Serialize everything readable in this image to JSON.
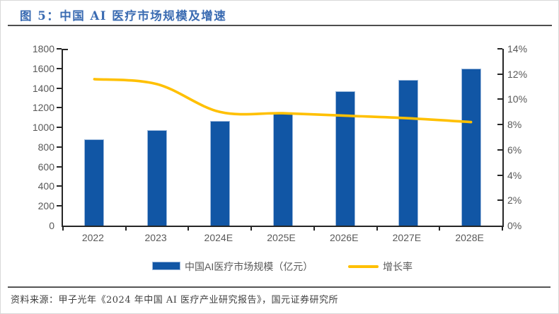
{
  "header": {
    "title": "图 5：中国 AI 医疗市场规模及增速"
  },
  "footer": {
    "source": "资料来源：甲子光年《2024 年中国 AI 医疗产业研究报告》，国元证券研究所"
  },
  "colors": {
    "bar_blue": "#1156a5",
    "bar_border": "#9db9dc",
    "line_gold": "#ffc000",
    "title_blue": "#3a6bb2",
    "axis_text_gray": "#595959",
    "axis_line": "#262626",
    "rule_gray": "#4e4e4e"
  },
  "chart_data": {
    "type": "bar",
    "combo": "bar+line",
    "categories": [
      "2022",
      "2023",
      "2024E",
      "2025E",
      "2026E",
      "2027E",
      "2028E"
    ],
    "series": [
      {
        "name": "中国AI医疗市场规模（亿元）",
        "type": "bar",
        "axis": "left",
        "color": "#1156a5",
        "values": [
          880,
          975,
          1065,
          1150,
          1365,
          1480,
          1600
        ]
      },
      {
        "name": "增长率",
        "type": "line",
        "axis": "right",
        "color": "#ffc000",
        "values_pct": [
          11.6,
          11.2,
          9.0,
          8.9,
          8.7,
          8.5,
          8.2
        ]
      }
    ],
    "left_axis": {
      "min": 0,
      "max": 1800,
      "step": 200
    },
    "right_axis": {
      "min": 0,
      "max": 14,
      "step": 2,
      "suffix": "%"
    },
    "grid": "off",
    "line_smoothing": "on",
    "legend_position": "bottom"
  }
}
